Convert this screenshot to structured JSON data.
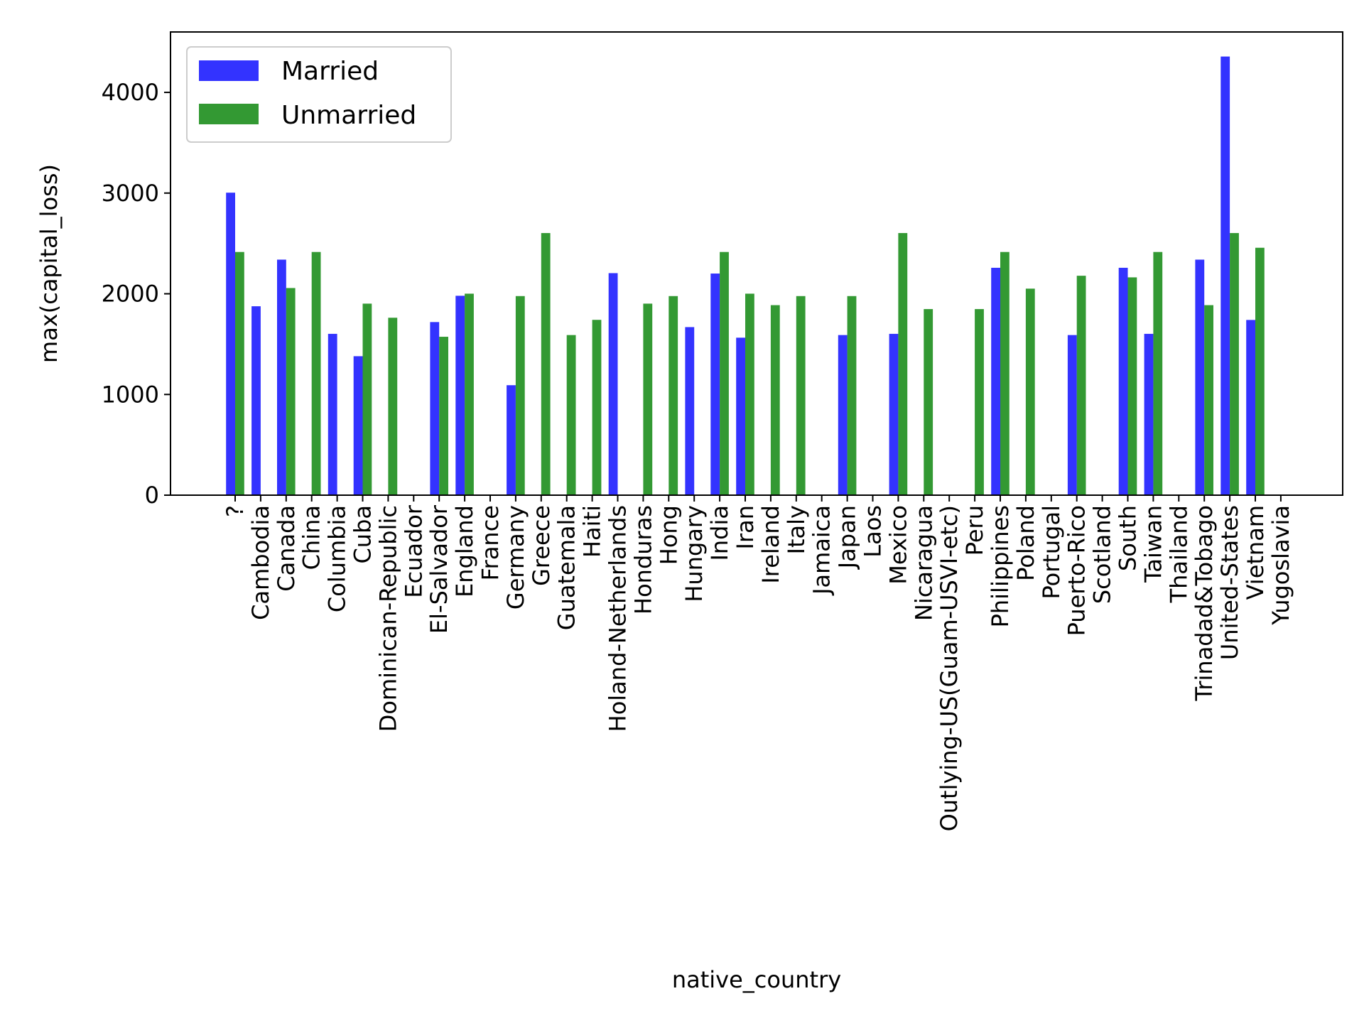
{
  "chart_data": {
    "type": "bar",
    "title": "",
    "xlabel": "native_country",
    "ylabel": "max(capital_loss)",
    "ylim": [
      0,
      4600
    ],
    "yticks": [
      0,
      1000,
      2000,
      3000,
      4000
    ],
    "grid": false,
    "legend_position": "top-left",
    "categories": [
      "?",
      "Cambodia",
      "Canada",
      "China",
      "Columbia",
      "Cuba",
      "Dominican-Republic",
      "Ecuador",
      "El-Salvador",
      "England",
      "France",
      "Germany",
      "Greece",
      "Guatemala",
      "Haiti",
      "Holand-Netherlands",
      "Honduras",
      "Hong",
      "Hungary",
      "India",
      "Iran",
      "Ireland",
      "Italy",
      "Jamaica",
      "Japan",
      "Laos",
      "Mexico",
      "Nicaragua",
      "Outlying-US(Guam-USVI-etc)",
      "Peru",
      "Philippines",
      "Poland",
      "Portugal",
      "Puerto-Rico",
      "Scotland",
      "South",
      "Taiwan",
      "Thailand",
      "Trinadad&Tobago",
      "United-States",
      "Vietnam",
      "Yugoslavia"
    ],
    "series": [
      {
        "name": "Married",
        "color": "#0000ff",
        "values": [
          3004,
          1876,
          2339,
          0,
          1602,
          1380,
          0,
          0,
          1719,
          1980,
          0,
          1092,
          0,
          0,
          0,
          2205,
          0,
          0,
          1669,
          2201,
          1564,
          0,
          0,
          0,
          1590,
          0,
          1602,
          0,
          0,
          0,
          2258,
          0,
          0,
          1590,
          0,
          2258,
          1602,
          0,
          2339,
          4356,
          1740,
          0
        ]
      },
      {
        "name": "Unmarried",
        "color": "#008000",
        "values": [
          2415,
          0,
          2057,
          2415,
          0,
          1902,
          1762,
          0,
          1573,
          2001,
          0,
          1977,
          2603,
          1590,
          1741,
          0,
          1902,
          1977,
          0,
          2415,
          2001,
          1887,
          1977,
          0,
          1977,
          0,
          2603,
          1848,
          0,
          1848,
          2415,
          2051,
          0,
          2179,
          0,
          2163,
          2415,
          0,
          1887,
          2603,
          2457,
          0
        ]
      }
    ]
  }
}
